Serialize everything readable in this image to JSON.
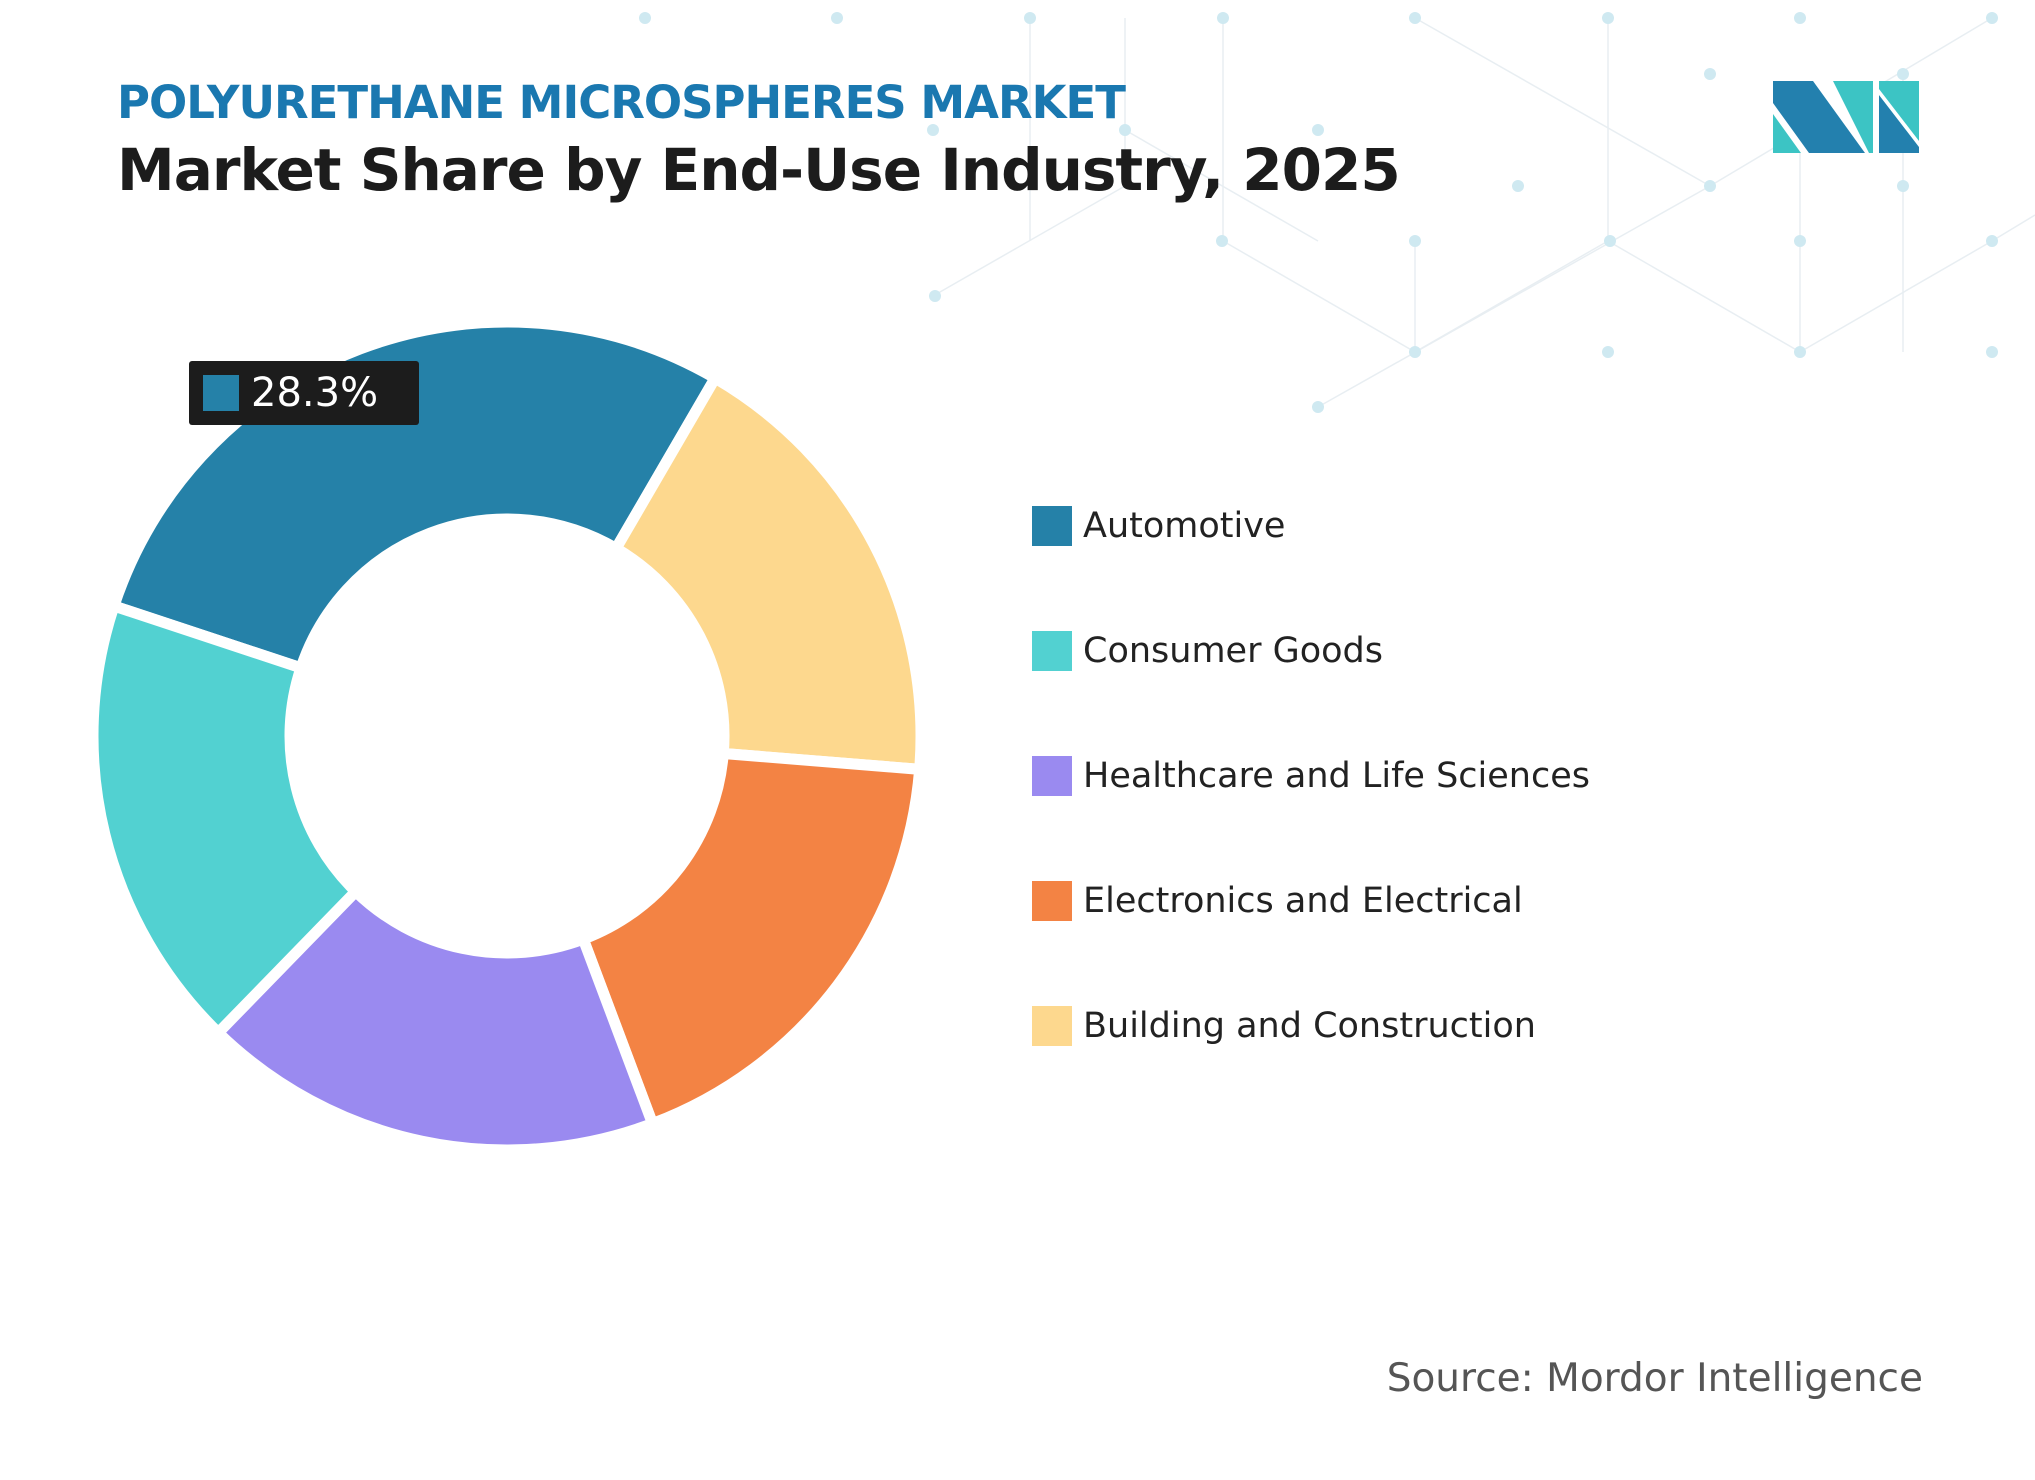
{
  "header": {
    "kicker": "POLYURETHANE MICROSPHERES MARKET",
    "title": "Market Share by End-Use Industry, 2025"
  },
  "logo": {
    "name": "mordor-intelligence-logo",
    "colors": [
      "#2380ae",
      "#3cc4c4"
    ]
  },
  "source": "Source: Mordor Intelligence",
  "chart_data": {
    "type": "pie",
    "donut": true,
    "title": "Market Share by End-Use Industry, 2025",
    "categories": [
      "Automotive",
      "Building and Construction",
      "Electronics and Electrical",
      "Healthcare and Life Sciences",
      "Consumer Goods"
    ],
    "values": [
      28.3,
      17.9,
      18.0,
      18.0,
      17.8
    ],
    "colors": [
      "#2581a8",
      "#fdd88e",
      "#f38344",
      "#9a8af0",
      "#52d1d1"
    ],
    "data_labels": [
      {
        "category": "Automotive",
        "text": "28.3%"
      }
    ],
    "legend": {
      "placement": "right",
      "items": [
        {
          "label": "Automotive",
          "color": "#2581a8"
        },
        {
          "label": "Consumer Goods",
          "color": "#52d1d1"
        },
        {
          "label": "Healthcare and Life Sciences",
          "color": "#9a8af0"
        },
        {
          "label": "Electronics and Electrical",
          "color": "#f38344"
        },
        {
          "label": "Building and Construction",
          "color": "#fdd88e"
        }
      ]
    }
  }
}
